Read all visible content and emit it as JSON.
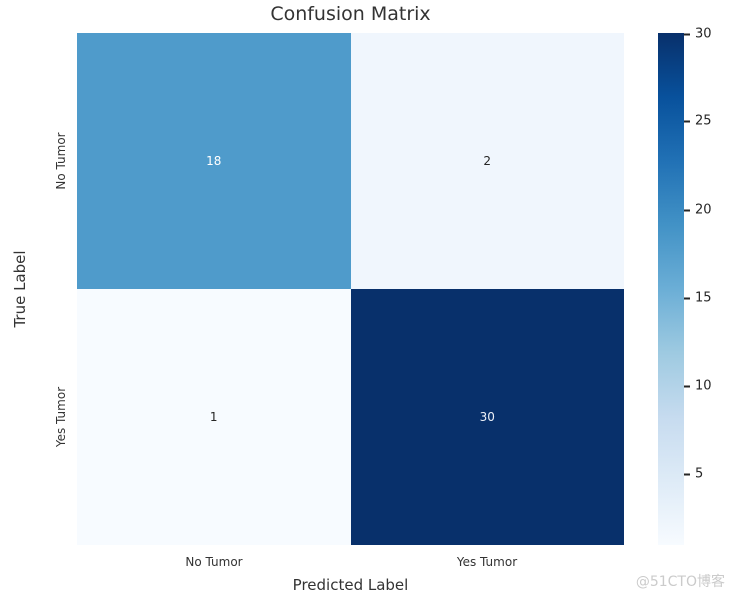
{
  "title": "Confusion Matrix",
  "chart_data": {
    "type": "heatmap",
    "title": "Confusion Matrix",
    "xlabel": "Predicted Label",
    "ylabel": "True Label",
    "x_categories": [
      "No Tumor",
      "Yes Tumor"
    ],
    "y_categories": [
      "No Tumor",
      "Yes Tumor"
    ],
    "matrix": [
      [
        18,
        2
      ],
      [
        1,
        30
      ]
    ],
    "colormap": "Blues",
    "colorbar_range": [
      1,
      30
    ],
    "colorbar_ticks": [
      5,
      10,
      15,
      20,
      25,
      30
    ],
    "legend_position": "right-colorbar",
    "grid": false
  },
  "axes": {
    "xlabel": "Predicted Label",
    "ylabel": "True Label",
    "xticks": [
      "No Tumor",
      "Yes Tumor"
    ],
    "yticks": [
      "No Tumor",
      "Yes Tumor"
    ]
  },
  "cells": [
    {
      "value": "18",
      "bg": "#4f9bcb",
      "fg": "#ffffff"
    },
    {
      "value": "2",
      "bg": "#f0f6fd",
      "fg": "#262626"
    },
    {
      "value": "1",
      "bg": "#f7fbff",
      "fg": "#262626"
    },
    {
      "value": "30",
      "bg": "#08306b",
      "fg": "#edf1f8"
    }
  ],
  "colorbar": {
    "ticks": [
      "30",
      "25",
      "20",
      "15",
      "10",
      "5"
    ],
    "gradient_top": "#08306b",
    "gradient_bottom": "#f7fbff"
  },
  "watermark": "@51CTO博客",
  "colors": {
    "background": "#ffffff",
    "text": "#333333",
    "tick_text": "#262626",
    "watermark": "#cbcbcb"
  }
}
